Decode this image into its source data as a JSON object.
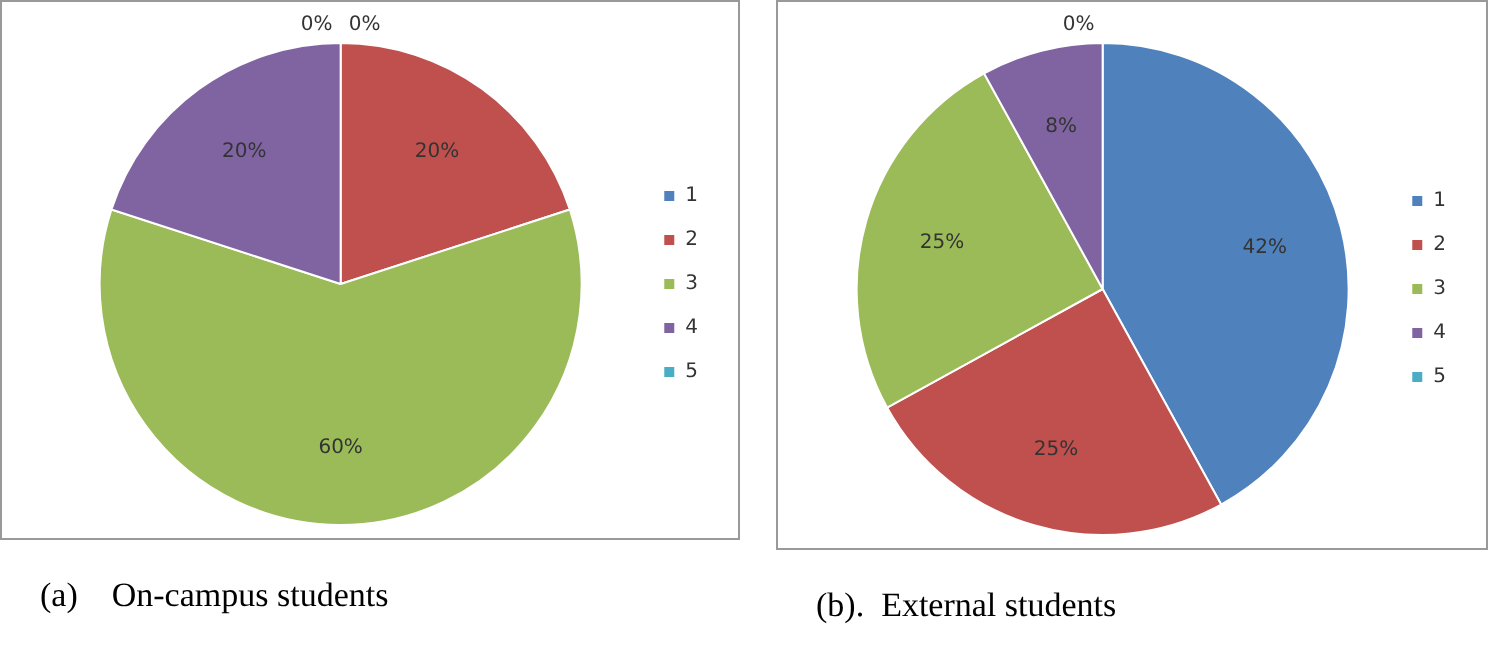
{
  "chart_data": [
    {
      "type": "pie",
      "categories": [
        "1",
        "2",
        "3",
        "4",
        "5"
      ],
      "values": [
        0,
        20,
        60,
        20,
        0
      ],
      "colors": [
        "#4f81bd",
        "#c0504d",
        "#9bbb59",
        "#8064a2",
        "#4bacc6"
      ],
      "value_labels": [
        "0%",
        "20%",
        "60%",
        "20%",
        "0%"
      ],
      "legend": "right",
      "annotations": [
        "(a)    On-campus students"
      ]
    },
    {
      "type": "pie",
      "categories": [
        "1",
        "2",
        "3",
        "4",
        "5"
      ],
      "values": [
        42,
        25,
        25,
        8,
        0
      ],
      "colors": [
        "#4f81bd",
        "#c0504d",
        "#9bbb59",
        "#8064a2",
        "#4bacc6"
      ],
      "value_labels": [
        "42%",
        "25%",
        "25%",
        "8%",
        "0%"
      ],
      "legend": "right",
      "annotations": [
        "(b).  External students"
      ]
    }
  ]
}
